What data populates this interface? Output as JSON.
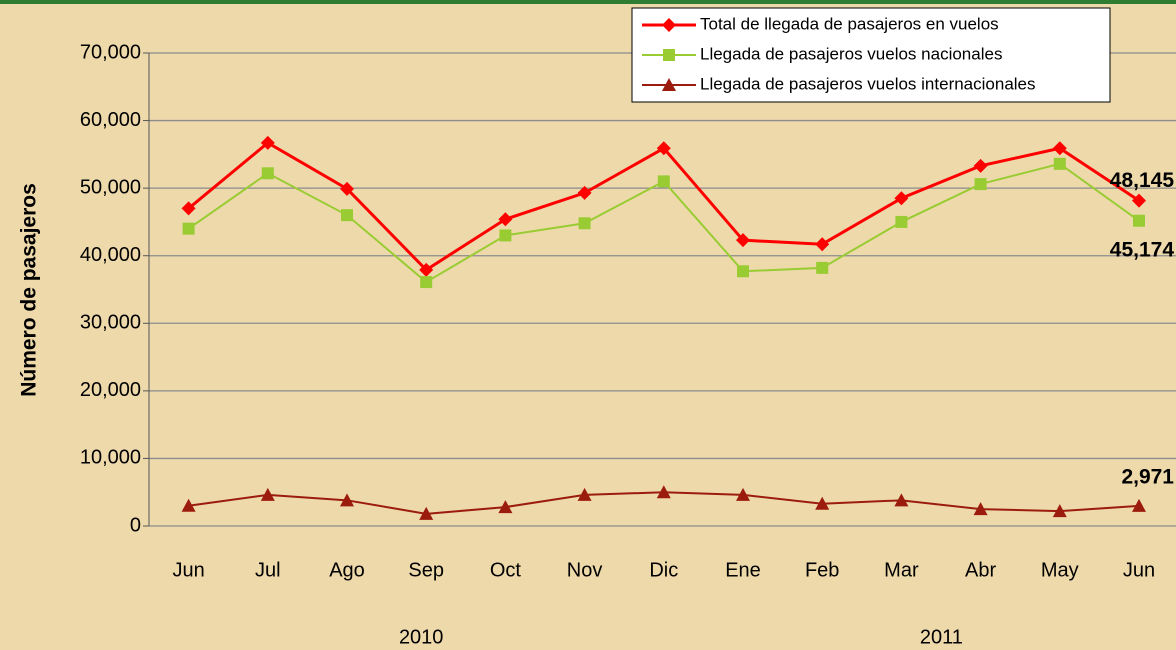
{
  "chart_data": {
    "type": "line",
    "y_axis_label": "Número de pasajeros",
    "categories": [
      "Jun",
      "Jul",
      "Ago",
      "Sep",
      "Oct",
      "Nov",
      "Dic",
      "Ene",
      "Feb",
      "Mar",
      "Abr",
      "May",
      "Jun"
    ],
    "year_labels": [
      "2010",
      "2011"
    ],
    "ylim": [
      0,
      70000
    ],
    "yticks": [
      0,
      {
        "value": 10000,
        "label": "10,000"
      },
      {
        "value": 20000,
        "label": "20,000"
      },
      {
        "value": 30000,
        "label": "30,000"
      },
      {
        "value": 40000,
        "label": "40,000"
      },
      {
        "value": 50000,
        "label": "50,000"
      },
      {
        "value": 60000,
        "label": "60,000"
      },
      {
        "value": 70000,
        "label": "70,000"
      }
    ],
    "grid": true,
    "legend": "top-right",
    "series": [
      {
        "name": "Total de llegada de pasajeros en vuelos",
        "color": "#ff0000",
        "marker": "diamond",
        "values": [
          47000,
          56700,
          49900,
          37900,
          45400,
          49300,
          55900,
          42300,
          41700,
          48500,
          53300,
          55900,
          48145
        ],
        "value_labels": [
          null,
          null,
          null,
          null,
          null,
          null,
          null,
          null,
          null,
          null,
          null,
          null,
          "48,145"
        ]
      },
      {
        "name": "Llegada de pasajeros vuelos nacionales",
        "color": "#99cc33",
        "marker": "square",
        "values": [
          44000,
          52200,
          46000,
          36100,
          43000,
          44800,
          51000,
          37700,
          38200,
          45000,
          50600,
          53600,
          45174
        ],
        "value_labels": [
          null,
          null,
          null,
          null,
          null,
          null,
          null,
          null,
          null,
          null,
          null,
          null,
          "45,174"
        ]
      },
      {
        "name": "Llegada de pasajeros vuelos internacionales",
        "color": "#9b1c0c",
        "marker": "triangle",
        "values": [
          3000,
          4600,
          3800,
          1800,
          2800,
          4600,
          5000,
          4600,
          3300,
          3800,
          2500,
          2200,
          2971
        ],
        "value_labels": [
          null,
          null,
          null,
          null,
          null,
          null,
          null,
          null,
          null,
          null,
          null,
          null,
          "2,971"
        ]
      }
    ]
  }
}
